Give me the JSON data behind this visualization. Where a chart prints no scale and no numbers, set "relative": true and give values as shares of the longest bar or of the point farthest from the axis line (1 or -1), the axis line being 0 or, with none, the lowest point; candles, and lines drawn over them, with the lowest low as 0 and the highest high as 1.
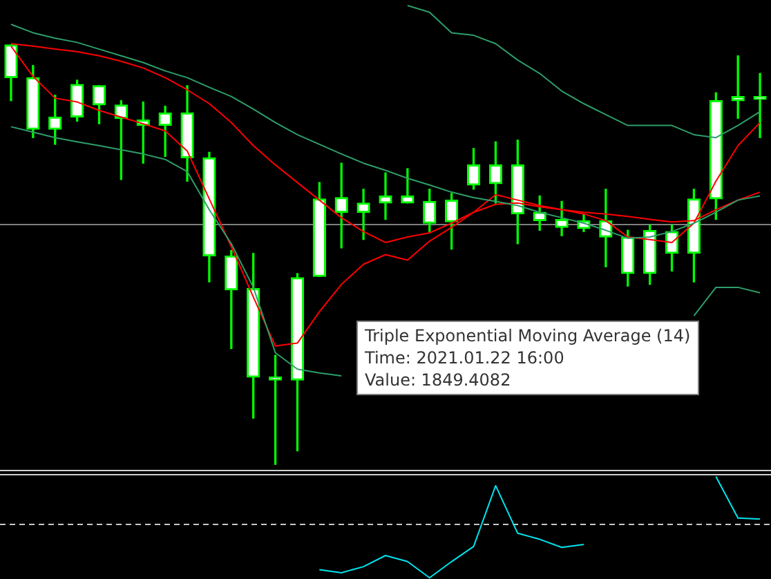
{
  "chart_data": [
    {
      "type": "candlestick",
      "relative": true,
      "categories": [
        null,
        null,
        null,
        null,
        null,
        null,
        null,
        null,
        null,
        null,
        null,
        null,
        null,
        null,
        null,
        null,
        null,
        null,
        null,
        null,
        null,
        null,
        null,
        null,
        null,
        null,
        null,
        null,
        null,
        null,
        null,
        null,
        null,
        null,
        null
      ],
      "ohlc": [
        [
          1.0,
          1.0,
          0.867,
          0.922
        ],
        [
          0.922,
          0.951,
          0.779,
          0.799
        ],
        [
          0.828,
          0.88,
          0.763,
          0.799
        ],
        [
          0.906,
          0.916,
          0.818,
          0.828
        ],
        [
          0.903,
          0.903,
          0.812,
          0.857
        ],
        [
          0.857,
          0.867,
          0.679,
          0.825
        ],
        [
          0.821,
          0.864,
          0.718,
          0.808
        ],
        [
          0.838,
          0.854,
          0.734,
          0.808
        ],
        [
          0.838,
          0.903,
          0.675,
          0.731
        ],
        [
          0.731,
          0.744,
          0.435,
          0.497
        ],
        [
          0.497,
          0.51,
          0.276,
          0.416
        ],
        [
          0.419,
          0.503,
          0.11,
          0.208
        ],
        [
          0.208,
          0.26,
          0.0,
          0.201
        ],
        [
          0.445,
          0.455,
          0.032,
          0.201
        ],
        [
          0.633,
          0.672,
          0.448,
          0.448
        ],
        [
          0.636,
          0.718,
          0.516,
          0.601
        ],
        [
          0.623,
          0.656,
          0.536,
          0.601
        ],
        [
          0.64,
          0.695,
          0.584,
          0.623
        ],
        [
          0.64,
          0.705,
          0.623,
          0.623
        ],
        [
          0.627,
          0.656,
          0.555,
          0.575
        ],
        [
          0.63,
          0.646,
          0.513,
          0.578
        ],
        [
          0.714,
          0.753,
          0.656,
          0.666
        ],
        [
          0.714,
          0.769,
          0.623,
          0.669
        ],
        [
          0.714,
          0.773,
          0.526,
          0.597
        ],
        [
          0.601,
          0.64,
          0.558,
          0.581
        ],
        [
          0.584,
          0.627,
          0.545,
          0.565
        ],
        [
          0.581,
          0.597,
          0.555,
          0.562
        ],
        [
          0.581,
          0.656,
          0.471,
          0.542
        ],
        [
          0.542,
          0.558,
          0.425,
          0.455
        ],
        [
          0.558,
          0.571,
          0.429,
          0.455
        ],
        [
          0.555,
          0.571,
          0.461,
          0.503
        ],
        [
          0.633,
          0.656,
          0.435,
          0.503
        ],
        [
          0.867,
          0.886,
          0.584,
          0.633
        ],
        [
          0.877,
          0.974,
          0.825,
          0.867
        ],
        [
          0.877,
          0.932,
          0.779,
          0.87
        ]
      ],
      "series": [
        {
          "type": "line",
          "color": "#2e9e6a",
          "values": [
            null,
            null,
            null,
            null,
            null,
            null,
            null,
            null,
            null,
            null,
            null,
            null,
            null,
            null,
            null,
            null,
            null,
            null,
            1.094,
            1.078,
            1.029,
            1.023,
            1.003,
            0.964,
            0.932,
            0.89,
            0.86,
            0.834,
            0.808,
            0.808,
            0.808,
            0.786,
            0.779,
            0.808,
            0.841
          ]
        },
        {
          "type": "line",
          "color": "#2e9e6a",
          "values": [
            1.049,
            1.029,
            1.016,
            1.006,
            0.99,
            0.974,
            0.958,
            0.938,
            0.922,
            0.899,
            0.877,
            0.847,
            0.815,
            0.786,
            0.763,
            0.74,
            0.718,
            0.701,
            0.682,
            0.666,
            0.649,
            0.636,
            0.627,
            0.617,
            0.601,
            0.588,
            0.575,
            0.558,
            0.539,
            0.542,
            0.555,
            0.575,
            0.601,
            0.63,
            0.64
          ]
        },
        {
          "type": "line",
          "color": "#2e9e6a",
          "values": [
            0.805,
            0.792,
            0.779,
            0.769,
            0.76,
            0.75,
            0.74,
            0.727,
            0.698,
            0.607,
            0.526,
            0.422,
            0.266,
            0.227,
            0.218,
            0.211,
            null,
            null,
            null,
            null,
            null,
            null,
            null,
            null,
            null,
            null,
            null,
            null,
            null,
            null,
            null,
            0.354,
            0.422,
            0.422,
            0.409
          ]
        },
        {
          "type": "line",
          "color": "#ff0000",
          "values": [
            0.997,
            0.925,
            0.873,
            0.864,
            0.844,
            0.828,
            0.812,
            0.795,
            0.747,
            0.633,
            0.519,
            0.399,
            0.282,
            0.289,
            0.364,
            0.429,
            0.477,
            0.5,
            0.487,
            0.532,
            0.565,
            0.601,
            0.643,
            0.63,
            0.617,
            0.607,
            0.597,
            0.581,
            0.542,
            0.536,
            0.529,
            0.575,
            0.675,
            0.76,
            0.815
          ]
        },
        {
          "type": "line",
          "color": "#ff0000",
          "values": [
            1.003,
            0.997,
            0.99,
            0.984,
            0.974,
            0.961,
            0.945,
            0.922,
            0.893,
            0.86,
            0.815,
            0.76,
            0.714,
            0.672,
            0.63,
            0.588,
            0.555,
            0.529,
            0.542,
            0.552,
            0.575,
            0.601,
            0.62,
            0.623,
            0.614,
            0.607,
            0.601,
            0.597,
            0.591,
            0.584,
            0.578,
            0.581,
            0.607,
            0.63,
            0.649
          ]
        }
      ],
      "ref_lines": [
        {
          "axis": "y",
          "value": 0.575,
          "color": "#808080"
        }
      ],
      "annotations": [
        "Triple Exponential Moving Average (14)",
        "Time: 2021.01.22 16:00",
        "Value: 1849.4082"
      ]
    },
    {
      "type": "line",
      "relative": true,
      "categories": [
        null,
        null,
        null,
        null,
        null,
        null,
        null,
        null,
        null,
        null,
        null,
        null,
        null,
        null,
        null,
        null,
        null,
        null,
        null,
        null,
        null,
        null,
        null,
        null,
        null,
        null,
        null,
        null,
        null,
        null,
        null,
        null,
        null,
        null,
        null
      ],
      "series": [
        {
          "color": "#00e5ee",
          "values": [
            null,
            null,
            null,
            null,
            null,
            null,
            null,
            null,
            null,
            null,
            null,
            null,
            null,
            null,
            0.08,
            0.05,
            0.11,
            0.22,
            0.16,
            0,
            0.16,
            0.31,
            0.91,
            0.44,
            0.38,
            0.3,
            0.33,
            null,
            null,
            null,
            null,
            null,
            1,
            0.59,
            0.58
          ]
        }
      ],
      "ref_lines": [
        {
          "axis": "y",
          "value": 0.53,
          "color": "#c8c8c8",
          "line_style": "dashed"
        }
      ]
    }
  ]
}
